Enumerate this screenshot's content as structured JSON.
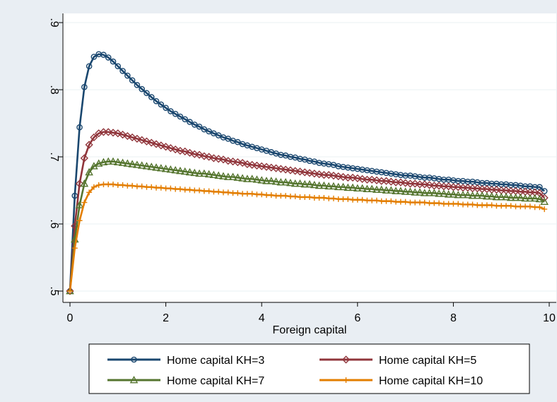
{
  "chart_data": {
    "type": "line",
    "xlabel": "Foreign capital",
    "ylabel": "",
    "xlim": [
      0,
      10
    ],
    "ylim": [
      0.5,
      0.9
    ],
    "x_ticks": [
      0,
      2,
      4,
      6,
      8,
      10
    ],
    "x_tick_labels": [
      "0",
      "2",
      "4",
      "6",
      "8",
      "10"
    ],
    "y_ticks": [
      0.5,
      0.6,
      0.7,
      0.8,
      0.9
    ],
    "y_tick_labels": [
      ".5",
      ".6",
      ".7",
      ".8",
      ".9"
    ],
    "grid": "horizontal",
    "legend_position": "bottom",
    "x_step": 0.1,
    "series": [
      {
        "name": "Home capital KH=3",
        "color": "#1a476f",
        "marker": "circle",
        "values": [
          0.5,
          0.642,
          0.744,
          0.804,
          0.835,
          0.849,
          0.853,
          0.852,
          0.848,
          0.842,
          0.835,
          0.828,
          0.821,
          0.814,
          0.807,
          0.801,
          0.795,
          0.789,
          0.783,
          0.778,
          0.773,
          0.768,
          0.764,
          0.76,
          0.756,
          0.752,
          0.748,
          0.745,
          0.741,
          0.738,
          0.735,
          0.732,
          0.729,
          0.727,
          0.724,
          0.722,
          0.719,
          0.717,
          0.715,
          0.713,
          0.711,
          0.709,
          0.707,
          0.705,
          0.703,
          0.702,
          0.7,
          0.699,
          0.697,
          0.696,
          0.694,
          0.693,
          0.691,
          0.69,
          0.689,
          0.688,
          0.686,
          0.685,
          0.684,
          0.683,
          0.682,
          0.681,
          0.68,
          0.679,
          0.678,
          0.677,
          0.676,
          0.675,
          0.674,
          0.673,
          0.672,
          0.672,
          0.671,
          0.67,
          0.669,
          0.669,
          0.668,
          0.667,
          0.666,
          0.666,
          0.665,
          0.664,
          0.664,
          0.663,
          0.663,
          0.662,
          0.661,
          0.661,
          0.66,
          0.66,
          0.659,
          0.659,
          0.658,
          0.658,
          0.657,
          0.656,
          0.656,
          0.655,
          0.655,
          0.649
        ]
      },
      {
        "name": "Home capital KH=5",
        "color": "#90353b",
        "marker": "diamond",
        "values": [
          0.5,
          0.597,
          0.66,
          0.698,
          0.718,
          0.729,
          0.735,
          0.737,
          0.737,
          0.736,
          0.735,
          0.733,
          0.731,
          0.729,
          0.727,
          0.725,
          0.723,
          0.721,
          0.719,
          0.717,
          0.715,
          0.713,
          0.711,
          0.709,
          0.708,
          0.706,
          0.704,
          0.703,
          0.701,
          0.7,
          0.698,
          0.697,
          0.696,
          0.694,
          0.693,
          0.692,
          0.691,
          0.689,
          0.688,
          0.687,
          0.686,
          0.685,
          0.684,
          0.683,
          0.682,
          0.681,
          0.68,
          0.679,
          0.678,
          0.677,
          0.676,
          0.675,
          0.674,
          0.673,
          0.673,
          0.672,
          0.671,
          0.67,
          0.669,
          0.669,
          0.668,
          0.667,
          0.666,
          0.666,
          0.665,
          0.664,
          0.664,
          0.663,
          0.662,
          0.662,
          0.661,
          0.66,
          0.66,
          0.659,
          0.659,
          0.658,
          0.657,
          0.657,
          0.656,
          0.656,
          0.655,
          0.655,
          0.654,
          0.654,
          0.653,
          0.653,
          0.652,
          0.652,
          0.651,
          0.651,
          0.65,
          0.65,
          0.649,
          0.649,
          0.648,
          0.648,
          0.647,
          0.647,
          0.646,
          0.639
        ]
      },
      {
        "name": "Home capital KH=7",
        "color": "#55752f",
        "marker": "triangle",
        "values": [
          0.5,
          0.577,
          0.628,
          0.66,
          0.677,
          0.686,
          0.69,
          0.692,
          0.693,
          0.693,
          0.692,
          0.691,
          0.69,
          0.689,
          0.688,
          0.687,
          0.686,
          0.685,
          0.684,
          0.683,
          0.682,
          0.681,
          0.68,
          0.679,
          0.678,
          0.677,
          0.676,
          0.675,
          0.675,
          0.674,
          0.673,
          0.672,
          0.671,
          0.67,
          0.67,
          0.669,
          0.668,
          0.667,
          0.667,
          0.666,
          0.665,
          0.664,
          0.664,
          0.663,
          0.662,
          0.662,
          0.661,
          0.66,
          0.66,
          0.659,
          0.659,
          0.658,
          0.657,
          0.657,
          0.656,
          0.656,
          0.655,
          0.655,
          0.654,
          0.654,
          0.653,
          0.653,
          0.652,
          0.652,
          0.651,
          0.651,
          0.65,
          0.65,
          0.649,
          0.649,
          0.648,
          0.648,
          0.647,
          0.647,
          0.646,
          0.646,
          0.646,
          0.645,
          0.645,
          0.644,
          0.644,
          0.643,
          0.643,
          0.643,
          0.642,
          0.642,
          0.642,
          0.641,
          0.641,
          0.64,
          0.64,
          0.64,
          0.639,
          0.639,
          0.639,
          0.638,
          0.638,
          0.638,
          0.637,
          0.633
        ]
      },
      {
        "name": "Home capital KH=10",
        "color": "#e37e00",
        "marker": "plus",
        "values": [
          0.5,
          0.564,
          0.605,
          0.632,
          0.647,
          0.655,
          0.658,
          0.659,
          0.659,
          0.659,
          0.658,
          0.658,
          0.657,
          0.657,
          0.656,
          0.656,
          0.655,
          0.655,
          0.654,
          0.654,
          0.653,
          0.653,
          0.652,
          0.652,
          0.651,
          0.651,
          0.65,
          0.65,
          0.649,
          0.649,
          0.648,
          0.648,
          0.647,
          0.647,
          0.646,
          0.646,
          0.645,
          0.645,
          0.645,
          0.644,
          0.644,
          0.643,
          0.643,
          0.642,
          0.642,
          0.642,
          0.641,
          0.641,
          0.64,
          0.64,
          0.64,
          0.639,
          0.639,
          0.639,
          0.638,
          0.638,
          0.637,
          0.637,
          0.637,
          0.636,
          0.636,
          0.636,
          0.635,
          0.635,
          0.635,
          0.634,
          0.634,
          0.634,
          0.633,
          0.633,
          0.633,
          0.632,
          0.632,
          0.632,
          0.632,
          0.631,
          0.631,
          0.631,
          0.63,
          0.63,
          0.63,
          0.63,
          0.629,
          0.629,
          0.629,
          0.628,
          0.628,
          0.628,
          0.628,
          0.627,
          0.627,
          0.627,
          0.627,
          0.626,
          0.626,
          0.626,
          0.626,
          0.625,
          0.625,
          0.622
        ]
      }
    ]
  }
}
